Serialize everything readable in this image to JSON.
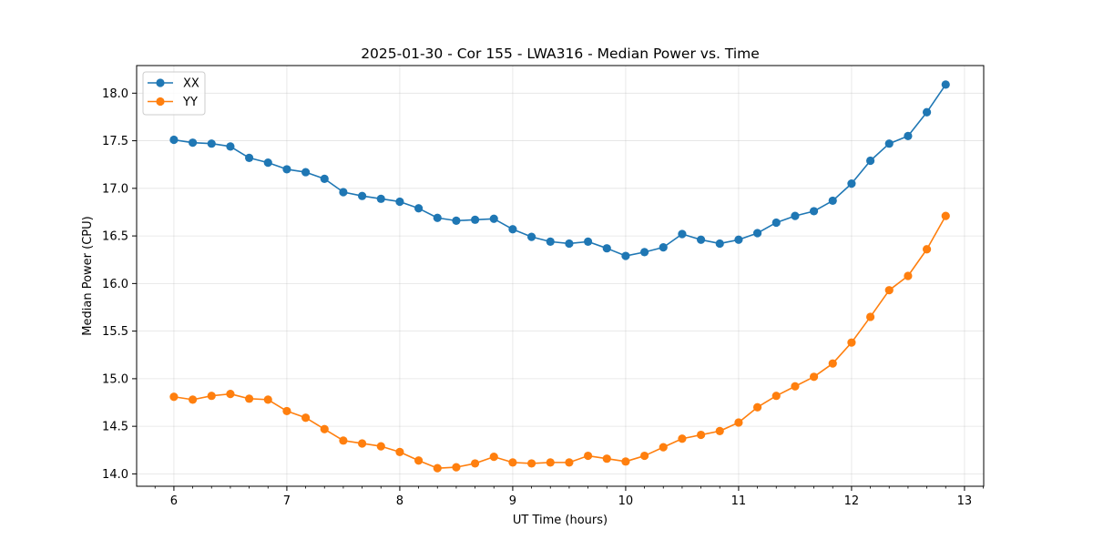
{
  "chart_data": {
    "type": "line",
    "title": "2025-01-30 - Cor 155 - LWA316 - Median Power vs. Time",
    "xlabel": "UT Time (hours)",
    "ylabel": "Median Power (CPU)",
    "xlim": [
      5.67,
      13.17
    ],
    "ylim": [
      13.87,
      18.29
    ],
    "xticks": [
      6,
      7,
      8,
      9,
      10,
      11,
      12,
      13
    ],
    "xtick_labels": [
      "6",
      "7",
      "8",
      "9",
      "10",
      "11",
      "12",
      "13"
    ],
    "yticks": [
      14.0,
      14.5,
      15.0,
      15.5,
      16.0,
      16.5,
      17.0,
      17.5,
      18.0
    ],
    "ytick_labels": [
      "14.0",
      "14.5",
      "15.0",
      "15.5",
      "16.0",
      "16.5",
      "17.0",
      "17.5",
      "18.0"
    ],
    "grid": true,
    "legend": "top-left",
    "x": [
      6.0,
      6.1667,
      6.3333,
      6.5,
      6.6667,
      6.8333,
      7.0,
      7.1667,
      7.3333,
      7.5,
      7.6667,
      7.8333,
      8.0,
      8.1667,
      8.3333,
      8.5,
      8.6667,
      8.8333,
      9.0,
      9.1667,
      9.3333,
      9.5,
      9.6667,
      9.8333,
      10.0,
      10.1667,
      10.3333,
      10.5,
      10.6667,
      10.8333,
      11.0,
      11.1667,
      11.3333,
      11.5,
      11.6667,
      11.8333,
      12.0,
      12.1667,
      12.3333,
      12.5,
      12.6667,
      12.8333
    ],
    "series": [
      {
        "name": "XX",
        "color": "#1f77b4",
        "values": [
          17.51,
          17.48,
          17.47,
          17.44,
          17.32,
          17.27,
          17.2,
          17.17,
          17.1,
          16.96,
          16.92,
          16.89,
          16.86,
          16.79,
          16.69,
          16.66,
          16.67,
          16.68,
          16.57,
          16.49,
          16.44,
          16.42,
          16.44,
          16.37,
          16.29,
          16.33,
          16.38,
          16.52,
          16.46,
          16.42,
          16.46,
          16.53,
          16.64,
          16.71,
          16.76,
          16.87,
          17.05,
          17.29,
          17.47,
          17.55,
          17.8,
          18.09
        ]
      },
      {
        "name": "YY",
        "color": "#ff7f0e",
        "values": [
          14.81,
          14.78,
          14.82,
          14.84,
          14.79,
          14.78,
          14.66,
          14.59,
          14.47,
          14.35,
          14.32,
          14.29,
          14.23,
          14.14,
          14.06,
          14.07,
          14.11,
          14.18,
          14.12,
          14.11,
          14.12,
          14.12,
          14.19,
          14.16,
          14.13,
          14.19,
          14.28,
          14.37,
          14.41,
          14.45,
          14.54,
          14.7,
          14.82,
          14.92,
          15.02,
          15.16,
          15.38,
          15.65,
          15.93,
          16.08,
          16.36,
          16.71
        ]
      }
    ]
  }
}
